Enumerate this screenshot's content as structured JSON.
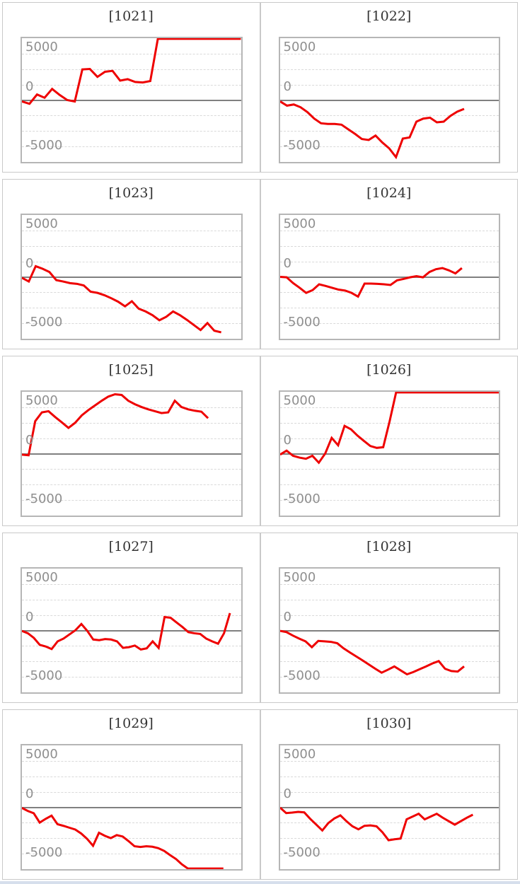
{
  "style": {
    "page_bg": "#ffffff",
    "line_color": "#ee0000",
    "grid_color": "#d9d9d9",
    "zero_line_color": "#808080",
    "plot_border_color": "#b6b6b6",
    "tile_border_color": "#c9c9c9",
    "title_color": "#333333",
    "label_color": "#8f8f8f",
    "bottom_bar_color": "#d6dfec"
  },
  "axis": {
    "labels": [
      "5000",
      "0",
      "-5000"
    ],
    "yticks": [
      5000,
      0,
      -5000
    ],
    "ylim": 6667,
    "grid_interval": 1667,
    "grid_on": true
  },
  "chart_data": [
    {
      "type": "line",
      "title": "[1021]",
      "yticks": [
        5000,
        0,
        -5000
      ],
      "ylim": [
        -6667,
        6667
      ],
      "x_end": 1.0,
      "values": [
        -150,
        -400,
        600,
        250,
        1200,
        550,
        0,
        -150,
        3300,
        3350,
        2500,
        3050,
        3150,
        2100,
        2250,
        1950,
        1900,
        2050,
        6600,
        6600,
        6600,
        6600,
        6600,
        6600,
        6600,
        6600,
        6600,
        6600,
        6600,
        6600
      ]
    },
    {
      "type": "line",
      "title": "[1022]",
      "yticks": [
        5000,
        0,
        -5000
      ],
      "ylim": [
        -6667,
        6667
      ],
      "x_end": 0.84,
      "values": [
        -150,
        -600,
        -475,
        -775,
        -1300,
        -2000,
        -2500,
        -2575,
        -2575,
        -2650,
        -3150,
        -3650,
        -4200,
        -4300,
        -3825,
        -4575,
        -5200,
        -6150,
        -4150,
        -4025,
        -2325,
        -2000,
        -1900,
        -2400,
        -2325,
        -1700,
        -1250,
        -950
      ]
    },
    {
      "type": "line",
      "title": "[1023]",
      "yticks": [
        5000,
        0,
        -5000
      ],
      "ylim": [
        -6667,
        6667
      ],
      "x_end": 0.91,
      "values": [
        -100,
        -500,
        1150,
        875,
        525,
        -350,
        -500,
        -675,
        -750,
        -925,
        -1600,
        -1725,
        -1975,
        -2300,
        -2675,
        -3175,
        -2625,
        -3425,
        -3725,
        -4125,
        -4675,
        -4300,
        -3725,
        -4125,
        -4625,
        -5175,
        -5725,
        -4975,
        -5800,
        -5975
      ]
    },
    {
      "type": "line",
      "title": "[1024]",
      "yticks": [
        5000,
        0,
        -5000
      ],
      "ylim": [
        -6667,
        6667
      ],
      "x_end": 0.83,
      "values": [
        0,
        -50,
        -675,
        -1175,
        -1725,
        -1425,
        -800,
        -975,
        -1175,
        -1375,
        -1475,
        -1725,
        -2125,
        -725,
        -725,
        -750,
        -800,
        -875,
        -375,
        -225,
        -50,
        75,
        -50,
        525,
        825,
        950,
        700,
        375,
        950
      ]
    },
    {
      "type": "line",
      "title": "[1025]",
      "yticks": [
        5000,
        0,
        -5000
      ],
      "ylim": [
        -6667,
        6667
      ],
      "x_end": 0.85,
      "values": [
        -100,
        -175,
        3500,
        4450,
        4575,
        3950,
        3375,
        2775,
        3325,
        4125,
        4700,
        5200,
        5700,
        6150,
        6400,
        6325,
        5700,
        5325,
        5025,
        4775,
        4575,
        4375,
        4450,
        5700,
        5025,
        4775,
        4625,
        4525,
        3825
      ]
    },
    {
      "type": "line",
      "title": "[1026]",
      "yticks": [
        5000,
        0,
        -5000
      ],
      "ylim": [
        -6667,
        6667
      ],
      "x_end": 1.0,
      "values": [
        -100,
        325,
        -225,
        -425,
        -550,
        -225,
        -975,
        25,
        1700,
        900,
        3000,
        2625,
        1950,
        1375,
        825,
        625,
        700,
        3500,
        6600,
        6600,
        6600,
        6600,
        6600,
        6600,
        6600,
        6600,
        6600,
        6600,
        6600,
        6600,
        6600,
        6600,
        6600,
        6600,
        6600
      ]
    },
    {
      "type": "line",
      "title": "[1027]",
      "yticks": [
        5000,
        0,
        -5000
      ],
      "ylim": [
        -6667,
        6667
      ],
      "x_end": 0.95,
      "values": [
        -50,
        -300,
        -800,
        -1550,
        -1725,
        -2000,
        -1175,
        -875,
        -425,
        25,
        700,
        -50,
        -975,
        -1050,
        -925,
        -975,
        -1175,
        -1875,
        -1800,
        -1625,
        -2050,
        -1925,
        -1175,
        -1875,
        1450,
        1375,
        875,
        375,
        -175,
        -300,
        -375,
        -875,
        -1175,
        -1425,
        -300,
        1875
      ]
    },
    {
      "type": "line",
      "title": "[1028]",
      "yticks": [
        5000,
        0,
        -5000
      ],
      "ylim": [
        -6667,
        6667
      ],
      "x_end": 0.84,
      "values": [
        -50,
        -175,
        -550,
        -875,
        -1175,
        -1800,
        -1125,
        -1175,
        -1225,
        -1375,
        -1925,
        -2375,
        -2800,
        -3225,
        -3675,
        -4125,
        -4550,
        -4225,
        -3875,
        -4300,
        -4725,
        -4475,
        -4175,
        -3875,
        -3550,
        -3300,
        -4125,
        -4375,
        -4425,
        -3875
      ]
    },
    {
      "type": "line",
      "title": "[1029]",
      "yticks": [
        5000,
        0,
        -5000
      ],
      "ylim": [
        -6667,
        6667
      ],
      "x_end": 0.92,
      "values": [
        -75,
        -400,
        -650,
        -1650,
        -1250,
        -900,
        -1825,
        -2000,
        -2200,
        -2400,
        -2825,
        -3400,
        -4150,
        -2750,
        -3075,
        -3325,
        -3000,
        -3150,
        -3650,
        -4200,
        -4275,
        -4200,
        -4250,
        -4400,
        -4700,
        -5150,
        -5575,
        -6150,
        -6600,
        -6600,
        -6600,
        -6600,
        -6600,
        -6600,
        -6600
      ]
    },
    {
      "type": "line",
      "title": "[1030]",
      "yticks": [
        5000,
        0,
        -5000
      ],
      "ylim": [
        -6667,
        6667
      ],
      "x_end": 0.88,
      "values": [
        -50,
        -625,
        -575,
        -500,
        -550,
        -1250,
        -1875,
        -2500,
        -1700,
        -1200,
        -875,
        -1500,
        -2050,
        -2375,
        -2000,
        -1950,
        -2050,
        -2700,
        -3550,
        -3450,
        -3375,
        -1300,
        -1000,
        -700,
        -1300,
        -1000,
        -700,
        -1125,
        -1500,
        -1875,
        -1500,
        -1125,
        -800
      ]
    }
  ]
}
